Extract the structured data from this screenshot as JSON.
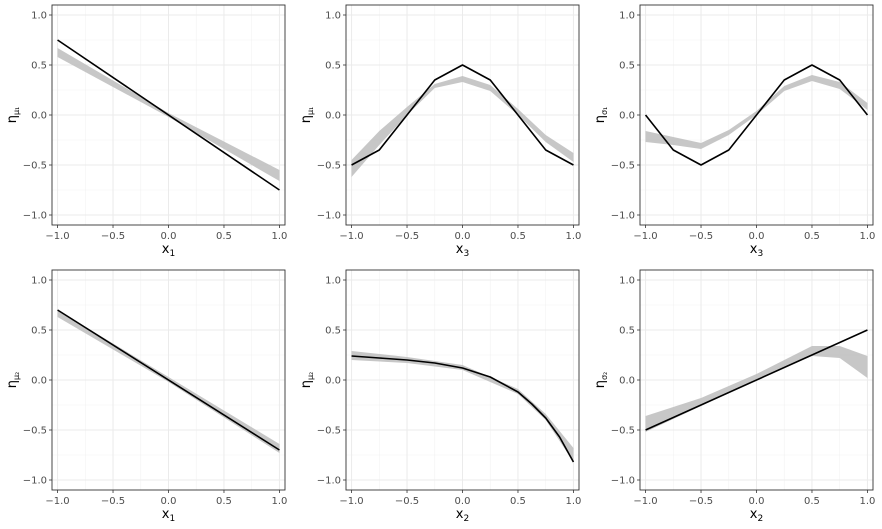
{
  "chart_data": [
    {
      "type": "line",
      "panel": "row1-col1",
      "xlabel": "x",
      "xlabel_sub": "1",
      "ylabel": "η",
      "ylabel_sub": "μ₁",
      "xlim": [
        -1.05,
        1.05
      ],
      "ylim": [
        -1.1,
        1.1
      ],
      "xticks": [
        -1.0,
        -0.5,
        0.0,
        0.5,
        1.0
      ],
      "yticks": [
        -1.0,
        -0.5,
        0.0,
        0.5,
        1.0
      ],
      "grid": true,
      "series": [
        {
          "x": [
            -1.0,
            1.0
          ],
          "y": [
            0.75,
            -0.75
          ],
          "color": "#000000"
        },
        {
          "band": true,
          "x": [
            -1.0,
            0.0,
            1.0
          ],
          "y_low": [
            0.58,
            -0.02,
            -0.66
          ],
          "y_high": [
            0.67,
            0.02,
            -0.55
          ],
          "color": "#bdbdbd"
        }
      ]
    },
    {
      "type": "line",
      "panel": "row1-col2",
      "xlabel": "x",
      "xlabel_sub": "3",
      "ylabel": "η",
      "ylabel_sub": "μ₁",
      "xlim": [
        -1.05,
        1.05
      ],
      "ylim": [
        -1.1,
        1.1
      ],
      "xticks": [
        -1.0,
        -0.5,
        0.0,
        0.5,
        1.0
      ],
      "yticks": [
        -1.0,
        -0.5,
        0.0,
        0.5,
        1.0
      ],
      "grid": true,
      "series": [
        {
          "x": [
            -1.0,
            -0.75,
            -0.5,
            -0.25,
            0.0,
            0.25,
            0.5,
            0.75,
            1.0
          ],
          "y": [
            -0.5,
            -0.35,
            0.0,
            0.35,
            0.5,
            0.35,
            0.0,
            -0.35,
            -0.5
          ],
          "color": "#000000"
        },
        {
          "band": true,
          "x": [
            -1.0,
            -0.75,
            -0.5,
            -0.25,
            0.0,
            0.25,
            0.5,
            0.75,
            1.0
          ],
          "y_low": [
            -0.62,
            -0.3,
            0.0,
            0.27,
            0.33,
            0.24,
            0.0,
            -0.27,
            -0.47
          ],
          "y_high": [
            -0.45,
            -0.16,
            0.08,
            0.31,
            0.39,
            0.3,
            0.06,
            -0.2,
            -0.38
          ],
          "color": "#bdbdbd"
        }
      ]
    },
    {
      "type": "line",
      "panel": "row1-col3",
      "xlabel": "x",
      "xlabel_sub": "3",
      "ylabel": "η",
      "ylabel_sub": "σ₁",
      "xlim": [
        -1.05,
        1.05
      ],
      "ylim": [
        -1.1,
        1.1
      ],
      "xticks": [
        -1.0,
        -0.5,
        0.0,
        0.5,
        1.0
      ],
      "yticks": [
        -1.0,
        -0.5,
        0.0,
        0.5,
        1.0
      ],
      "grid": true,
      "series": [
        {
          "x": [
            -1.0,
            -0.75,
            -0.5,
            -0.25,
            0.0,
            0.25,
            0.5,
            0.75,
            1.0
          ],
          "y": [
            0.0,
            -0.35,
            -0.5,
            -0.35,
            0.0,
            0.35,
            0.5,
            0.35,
            0.0
          ],
          "color": "#000000"
        },
        {
          "band": true,
          "x": [
            -1.0,
            -0.75,
            -0.5,
            -0.25,
            0.0,
            0.25,
            0.5,
            0.75,
            1.0
          ],
          "y_low": [
            -0.27,
            -0.3,
            -0.34,
            -0.2,
            0.0,
            0.24,
            0.34,
            0.26,
            0.05
          ],
          "y_high": [
            -0.16,
            -0.22,
            -0.28,
            -0.15,
            0.04,
            0.29,
            0.4,
            0.33,
            0.12
          ],
          "color": "#bdbdbd"
        }
      ]
    },
    {
      "type": "line",
      "panel": "row2-col1",
      "xlabel": "x",
      "xlabel_sub": "1",
      "ylabel": "η",
      "ylabel_sub": "μ₂",
      "xlim": [
        -1.05,
        1.05
      ],
      "ylim": [
        -1.1,
        1.1
      ],
      "xticks": [
        -1.0,
        -0.5,
        0.0,
        0.5,
        1.0
      ],
      "yticks": [
        -1.0,
        -0.5,
        0.0,
        0.5,
        1.0
      ],
      "grid": true,
      "series": [
        {
          "x": [
            -1.0,
            1.0
          ],
          "y": [
            0.7,
            -0.7
          ],
          "color": "#000000"
        },
        {
          "band": true,
          "x": [
            -1.0,
            0.0,
            1.0
          ],
          "y_low": [
            0.63,
            -0.02,
            -0.73
          ],
          "y_high": [
            0.7,
            0.03,
            -0.64
          ],
          "color": "#bdbdbd"
        }
      ]
    },
    {
      "type": "line",
      "panel": "row2-col2",
      "xlabel": "x",
      "xlabel_sub": "2",
      "ylabel": "η",
      "ylabel_sub": "μ₂",
      "xlim": [
        -1.05,
        1.05
      ],
      "ylim": [
        -1.1,
        1.1
      ],
      "xticks": [
        -1.0,
        -0.5,
        0.0,
        0.5,
        1.0
      ],
      "yticks": [
        -1.0,
        -0.5,
        0.0,
        0.5,
        1.0
      ],
      "grid": true,
      "series": [
        {
          "x": [
            -1.0,
            -0.75,
            -0.5,
            -0.25,
            0.0,
            0.25,
            0.5,
            0.625,
            0.75,
            0.875,
            1.0
          ],
          "y": [
            0.24,
            0.22,
            0.2,
            0.17,
            0.12,
            0.03,
            -0.12,
            -0.24,
            -0.38,
            -0.57,
            -0.82
          ],
          "color": "#000000"
        },
        {
          "band": true,
          "x": [
            -1.0,
            -0.5,
            0.0,
            0.5,
            0.75,
            1.0
          ],
          "y_low": [
            0.2,
            0.17,
            0.1,
            -0.14,
            -0.4,
            -0.82
          ],
          "y_high": [
            0.29,
            0.23,
            0.15,
            -0.09,
            -0.34,
            -0.68
          ],
          "color": "#bdbdbd"
        }
      ]
    },
    {
      "type": "line",
      "panel": "row2-col3",
      "xlabel": "x",
      "xlabel_sub": "2",
      "ylabel": "η",
      "ylabel_sub": "σ₂",
      "xlim": [
        -1.05,
        1.05
      ],
      "ylim": [
        -1.1,
        1.1
      ],
      "xticks": [
        -1.0,
        -0.5,
        0.0,
        0.5,
        1.0
      ],
      "yticks": [
        -1.0,
        -0.5,
        0.0,
        0.5,
        1.0
      ],
      "grid": true,
      "series": [
        {
          "x": [
            -1.0,
            1.0
          ],
          "y": [
            -0.5,
            0.5
          ],
          "color": "#000000"
        },
        {
          "band": true,
          "x": [
            -1.0,
            -0.5,
            0.0,
            0.5,
            0.75,
            1.0
          ],
          "y_low": [
            -0.52,
            -0.26,
            0.0,
            0.24,
            0.22,
            0.02
          ],
          "y_high": [
            -0.36,
            -0.18,
            0.06,
            0.34,
            0.34,
            0.24
          ],
          "color": "#bdbdbd"
        }
      ]
    }
  ]
}
